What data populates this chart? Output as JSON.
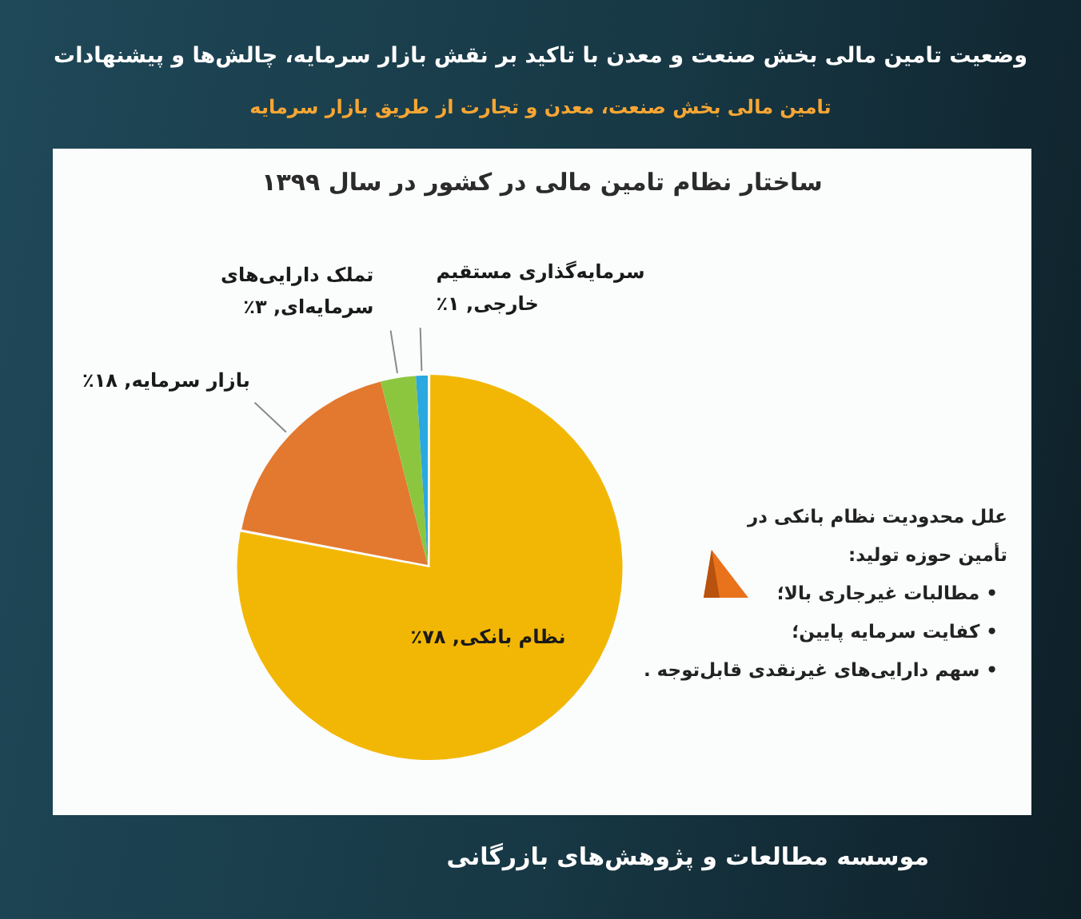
{
  "chart_data": {
    "type": "pie",
    "title": "وضعیت تامین مالی بخش صنعت و معدن با تاکید بر نقش بازار سرمایه، چالش‌ها و پیشنهادات",
    "subtitle": "تامین مالی بخش صنعت، معدن و تجارت از طریق بازار سرمایه",
    "categories": [
      "نظام بانکی",
      "بازار سرمایه",
      "تملک دارایی‌های سرمایه‌ای",
      "سرمایه‌گذاری مستقیم خارجی"
    ],
    "values": [
      78,
      18,
      3,
      1
    ],
    "colors": [
      "#f2b705",
      "#e3782f",
      "#8cc63f",
      "#2aa8e0"
    ],
    "value_labels": [
      "۷۸٪",
      "۱۸٪",
      "۳٪",
      "۱٪"
    ],
    "annotations": [
      "ساختار نظام تامین مالی در کشور در سال ۱۳۹۹",
      "علل محدودیت نظام بانکی در تأمین حوزه تولید:",
      "• مطالبات غیرجاری بالا؛",
      "• کفایت سرمایه پایین؛",
      "• سهم دارایی‌های غیرنقدی قابل‌توجه .",
      "موسسه مطالعات و پژوهش‌های بازرگانی"
    ]
  }
}
